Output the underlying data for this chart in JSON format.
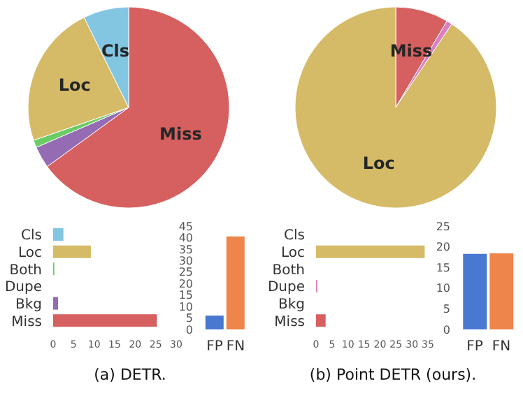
{
  "chart_data": [
    {
      "type": "pie",
      "categories": [
        "Miss",
        null,
        null,
        "Loc",
        "Cls"
      ],
      "values": [
        65,
        3.5,
        1.2,
        23,
        7.3
      ],
      "colors": [
        "#d65f5f",
        "#956cb4",
        "#6acc64",
        "#d5bb67",
        "#82c6e2"
      ]
    },
    {
      "type": "pie",
      "categories": [
        "Miss",
        null,
        "Loc"
      ],
      "values": [
        8.5,
        0.9,
        90.6
      ],
      "colors": [
        "#d65f5f",
        "#dc7ec0",
        "#d5bb67"
      ]
    },
    {
      "type": "bar",
      "orientation": "horizontal",
      "categories": [
        "Cls",
        "Loc",
        "Both",
        "Dupe",
        "Bkg",
        "Miss"
      ],
      "values": [
        2.5,
        9.2,
        0.3,
        0,
        1.2,
        25.3
      ],
      "colors": [
        "#82c6e2",
        "#d5bb67",
        "#6acc64",
        "#dc7ec0",
        "#956cb4",
        "#d65f5f"
      ],
      "xlim": [
        0,
        30
      ],
      "xticks": [
        0,
        5,
        10,
        15,
        20,
        25,
        30
      ],
      "annotations": [
        "(a) DETR."
      ]
    },
    {
      "type": "bar",
      "categories": [
        "FP",
        "FN"
      ],
      "values": [
        6,
        40.5
      ],
      "colors": [
        "#4878d0",
        "#ee854a"
      ],
      "ylim": [
        0,
        45
      ],
      "yticks": [
        0,
        5,
        10,
        15,
        20,
        25,
        30,
        35,
        40,
        45
      ]
    },
    {
      "type": "bar",
      "orientation": "horizontal",
      "categories": [
        "Cls",
        "Loc",
        "Both",
        "Dupe",
        "Bkg",
        "Miss"
      ],
      "values": [
        0,
        34,
        0,
        0.4,
        0,
        3
      ],
      "colors": [
        "#82c6e2",
        "#d5bb67",
        "#6acc64",
        "#dc7ec0",
        "#956cb4",
        "#d65f5f"
      ],
      "xlim": [
        0,
        35
      ],
      "xticks": [
        0,
        5,
        10,
        15,
        20,
        25,
        30,
        35
      ],
      "annotations": [
        "(b) Point DETR (ours)."
      ]
    },
    {
      "type": "bar",
      "categories": [
        "FP",
        "FN"
      ],
      "values": [
        18.3,
        18.4
      ],
      "colors": [
        "#4878d0",
        "#ee854a"
      ],
      "ylim": [
        0,
        25
      ],
      "yticks": [
        0,
        5,
        10,
        15,
        20,
        25
      ]
    }
  ]
}
